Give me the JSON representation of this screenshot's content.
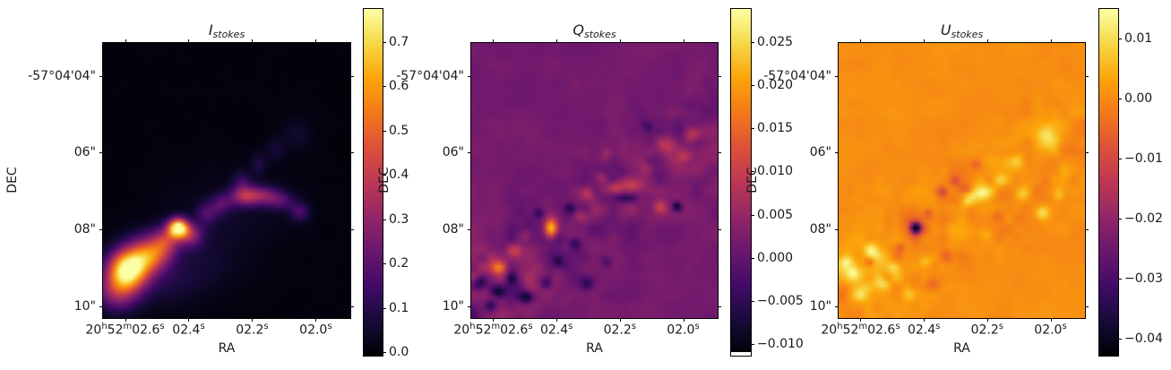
{
  "figure": {
    "background": "#ffffff",
    "spine_color": "#000000",
    "text_color": "#1a1a1a"
  },
  "colormap": {
    "name": "inferno",
    "stops": [
      [
        0.0,
        "#000004"
      ],
      [
        0.1,
        "#160b39"
      ],
      [
        0.2,
        "#420a68"
      ],
      [
        0.3,
        "#6a176e"
      ],
      [
        0.4,
        "#932667"
      ],
      [
        0.5,
        "#bc3754"
      ],
      [
        0.6,
        "#dd513a"
      ],
      [
        0.7,
        "#f37819"
      ],
      [
        0.8,
        "#fca50a"
      ],
      [
        0.9,
        "#f6d746"
      ],
      [
        1.0,
        "#fcffa4"
      ]
    ]
  },
  "chart_data": [
    {
      "type": "heatmap",
      "title": "I_stokes",
      "title_main": "I",
      "title_sub": "stokes",
      "xlabel": "RA",
      "ylabel": "DEC",
      "colormap": "inferno",
      "x_ticks": {
        "labels": [
          "20h52m02.6s",
          "02.4s",
          "02.2s",
          "02.0s"
        ],
        "positions": [
          0.089,
          0.346,
          0.603,
          0.86
        ]
      },
      "y_ticks": {
        "labels": [
          "-57°04'04\"",
          "06\"",
          "08\"",
          "10\""
        ],
        "positions": [
          0.12,
          0.399,
          0.678,
          0.957
        ]
      },
      "colorbar": {
        "tick_labels": [
          "0.7",
          "0.6",
          "0.5",
          "0.4",
          "0.3",
          "0.2",
          "0.1",
          "0.0"
        ],
        "tick_values": [
          0.7,
          0.6,
          0.5,
          0.4,
          0.3,
          0.2,
          0.1,
          0.0
        ],
        "vmin": -0.008,
        "vmax": 0.775,
        "under_strip": false
      },
      "value_range": [
        0.0,
        0.775
      ],
      "render": {
        "seed": 7,
        "background": 0.012,
        "noise": {
          "base": 0.003,
          "diag": 0.005,
          "extras": []
        },
        "blobs": [
          [
            0.09,
            0.83,
            0.055,
            0.05,
            0.72
          ],
          [
            0.16,
            0.78,
            0.055,
            0.05,
            0.34
          ],
          [
            0.05,
            0.91,
            0.06,
            0.05,
            0.28
          ],
          [
            0.3,
            0.675,
            0.028,
            0.024,
            0.78
          ],
          [
            0.25,
            0.72,
            0.04,
            0.035,
            0.28
          ],
          [
            0.35,
            0.7,
            0.035,
            0.03,
            0.26
          ],
          [
            0.21,
            0.77,
            0.05,
            0.04,
            0.22
          ],
          [
            0.42,
            0.62,
            0.03,
            0.027,
            0.14
          ],
          [
            0.48,
            0.585,
            0.03,
            0.025,
            0.16
          ],
          [
            0.57,
            0.555,
            0.04,
            0.026,
            0.3
          ],
          [
            0.645,
            0.555,
            0.045,
            0.024,
            0.24
          ],
          [
            0.72,
            0.575,
            0.04,
            0.024,
            0.16
          ],
          [
            0.8,
            0.615,
            0.028,
            0.024,
            0.16
          ],
          [
            0.56,
            0.5,
            0.025,
            0.025,
            0.1
          ],
          [
            0.63,
            0.44,
            0.022,
            0.03,
            0.08
          ],
          [
            0.7,
            0.385,
            0.025,
            0.032,
            0.06
          ],
          [
            0.79,
            0.33,
            0.04,
            0.04,
            0.05
          ],
          [
            0.38,
            0.8,
            0.12,
            0.08,
            0.05
          ],
          [
            0.24,
            0.88,
            0.1,
            0.06,
            0.06
          ],
          [
            0.5,
            0.63,
            0.18,
            0.1,
            0.035
          ]
        ]
      }
    },
    {
      "type": "heatmap",
      "title": "Q_stokes",
      "title_main": "Q",
      "title_sub": "stokes",
      "xlabel": "RA",
      "ylabel": "DEC",
      "colormap": "inferno",
      "x_ticks": {
        "labels": [
          "20h52m02.6s",
          "02.4s",
          "02.2s",
          "02.0s"
        ],
        "positions": [
          0.089,
          0.346,
          0.603,
          0.86
        ]
      },
      "y_ticks": {
        "labels": [
          "-57°04'04\"",
          "06\"",
          "08\"",
          "10\""
        ],
        "positions": [
          0.12,
          0.399,
          0.678,
          0.957
        ]
      },
      "colorbar": {
        "tick_labels": [
          "0.025",
          "0.020",
          "0.015",
          "0.010",
          "0.005",
          "0.000",
          "−0.005",
          "−0.010"
        ],
        "tick_values": [
          0.025,
          0.02,
          0.015,
          0.01,
          0.005,
          0.0,
          -0.005,
          -0.01
        ],
        "vmin": -0.0113,
        "vmax": 0.0288,
        "under_strip": true
      },
      "value_range": [
        -0.0113,
        0.0288
      ],
      "render": {
        "seed": 13,
        "background": 0.0018,
        "noise": {
          "base": 0.0009,
          "diag": 0.003,
          "extras": [
            [
              0.14,
              0.89,
              0.16,
              0.1,
              0.0022
            ]
          ]
        },
        "blobs": [
          [
            0.32,
            0.675,
            0.018,
            0.024,
            0.0235
          ],
          [
            0.103,
            0.82,
            0.024,
            0.018,
            0.012
          ],
          [
            0.17,
            0.76,
            0.02,
            0.017,
            0.007
          ],
          [
            0.22,
            0.7,
            0.017,
            0.015,
            0.005
          ],
          [
            0.47,
            0.55,
            0.02,
            0.017,
            0.007
          ],
          [
            0.53,
            0.49,
            0.018,
            0.016,
            0.006
          ],
          [
            0.585,
            0.525,
            0.025,
            0.016,
            0.008
          ],
          [
            0.655,
            0.52,
            0.032,
            0.018,
            0.009
          ],
          [
            0.77,
            0.6,
            0.018,
            0.016,
            0.009
          ],
          [
            0.72,
            0.46,
            0.02,
            0.017,
            0.006
          ],
          [
            0.8,
            0.37,
            0.028,
            0.024,
            0.007
          ],
          [
            0.87,
            0.41,
            0.024,
            0.02,
            0.007
          ],
          [
            0.9,
            0.335,
            0.02,
            0.02,
            0.006
          ],
          [
            0.55,
            0.4,
            0.016,
            0.016,
            0.004
          ],
          [
            0.44,
            0.63,
            0.016,
            0.014,
            0.005
          ],
          [
            0.84,
            0.595,
            0.013,
            0.012,
            -0.0135
          ],
          [
            0.03,
            0.88,
            0.02,
            0.016,
            -0.011
          ],
          [
            0.1,
            0.91,
            0.022,
            0.016,
            -0.012
          ],
          [
            0.16,
            0.86,
            0.016,
            0.014,
            -0.009
          ],
          [
            0.07,
            0.96,
            0.02,
            0.015,
            -0.009
          ],
          [
            0.22,
            0.93,
            0.018,
            0.016,
            -0.01
          ],
          [
            0.3,
            0.88,
            0.016,
            0.014,
            -0.008
          ],
          [
            0.27,
            0.62,
            0.014,
            0.013,
            -0.007
          ],
          [
            0.4,
            0.6,
            0.014,
            0.013,
            -0.007
          ],
          [
            0.42,
            0.73,
            0.016,
            0.016,
            -0.008
          ],
          [
            0.35,
            0.8,
            0.014,
            0.013,
            -0.007
          ],
          [
            0.63,
            0.565,
            0.032,
            0.01,
            -0.007
          ],
          [
            0.72,
            0.3,
            0.016,
            0.016,
            -0.005
          ],
          [
            0.47,
            0.88,
            0.02,
            0.016,
            -0.007
          ],
          [
            0.55,
            0.8,
            0.016,
            0.016,
            -0.005
          ]
        ]
      }
    },
    {
      "type": "heatmap",
      "title": "U_stokes",
      "title_main": "U",
      "title_sub": "stokes",
      "xlabel": "RA",
      "ylabel": "DEC",
      "colormap": "inferno",
      "x_ticks": {
        "labels": [
          "20h52m02.6s",
          "02.4s",
          "02.2s",
          "02.0s"
        ],
        "positions": [
          0.089,
          0.346,
          0.603,
          0.86
        ]
      },
      "y_ticks": {
        "labels": [
          "-57°04'04\"",
          "06\"",
          "08\"",
          "10\""
        ],
        "positions": [
          0.12,
          0.399,
          0.678,
          0.957
        ]
      },
      "colorbar": {
        "tick_labels": [
          "0.01",
          "0.00",
          "−0.01",
          "−0.02",
          "−0.03",
          "−0.04"
        ],
        "tick_values": [
          0.01,
          0.0,
          -0.01,
          -0.02,
          -0.03,
          -0.04
        ],
        "vmin": -0.0428,
        "vmax": 0.0149,
        "under_strip": false
      },
      "value_range": [
        -0.0428,
        0.0149
      ],
      "render": {
        "seed": 21,
        "background": 0.0005,
        "noise": {
          "base": 0.0011,
          "diag": 0.0036,
          "extras": [
            [
              0.1,
              0.86,
              0.15,
              0.1,
              0.0025
            ]
          ]
        },
        "blobs": [
          [
            0.31,
            0.675,
            0.014,
            0.013,
            -0.042
          ],
          [
            0.31,
            0.675,
            0.036,
            0.032,
            -0.011
          ],
          [
            0.42,
            0.54,
            0.016,
            0.014,
            -0.011
          ],
          [
            0.47,
            0.5,
            0.014,
            0.013,
            -0.009
          ],
          [
            0.52,
            0.53,
            0.024,
            0.01,
            -0.008
          ],
          [
            0.36,
            0.62,
            0.014,
            0.013,
            -0.008
          ],
          [
            0.12,
            0.8,
            0.012,
            0.011,
            -0.009
          ],
          [
            0.65,
            0.63,
            0.02,
            0.016,
            -0.006
          ],
          [
            0.25,
            0.75,
            0.016,
            0.014,
            -0.006
          ],
          [
            0.44,
            0.78,
            0.018,
            0.016,
            -0.006
          ],
          [
            0.38,
            0.88,
            0.018,
            0.016,
            -0.005
          ],
          [
            0.56,
            0.44,
            0.014,
            0.013,
            -0.006
          ],
          [
            0.05,
            0.84,
            0.024,
            0.022,
            0.012
          ],
          [
            0.13,
            0.76,
            0.022,
            0.019,
            0.011
          ],
          [
            0.02,
            0.8,
            0.018,
            0.016,
            0.01
          ],
          [
            0.08,
            0.92,
            0.021,
            0.018,
            0.01
          ],
          [
            0.17,
            0.88,
            0.019,
            0.016,
            0.008
          ],
          [
            0.22,
            0.82,
            0.016,
            0.014,
            0.007
          ],
          [
            0.58,
            0.545,
            0.036,
            0.02,
            0.013
          ],
          [
            0.52,
            0.575,
            0.02,
            0.016,
            0.009
          ],
          [
            0.66,
            0.5,
            0.02,
            0.016,
            0.008
          ],
          [
            0.73,
            0.43,
            0.02,
            0.018,
            0.008
          ],
          [
            0.85,
            0.345,
            0.032,
            0.036,
            0.012
          ],
          [
            0.83,
            0.62,
            0.018,
            0.016,
            0.009
          ],
          [
            0.9,
            0.55,
            0.016,
            0.016,
            0.006
          ],
          [
            0.28,
            0.92,
            0.02,
            0.016,
            0.007
          ],
          [
            0.35,
            0.8,
            0.016,
            0.014,
            0.006
          ],
          [
            0.6,
            0.7,
            0.024,
            0.02,
            0.005
          ],
          [
            0.75,
            0.55,
            0.016,
            0.014,
            0.006
          ]
        ]
      }
    }
  ]
}
